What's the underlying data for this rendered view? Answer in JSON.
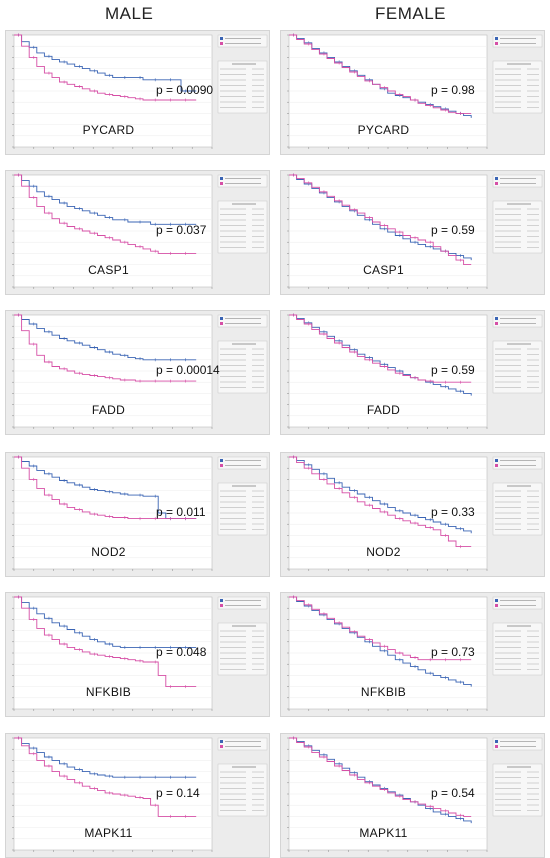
{
  "headers": {
    "left": "MALE",
    "right": "FEMALE"
  },
  "colors": {
    "low": "#3a64b4",
    "high": "#d64fa6"
  },
  "chart_data": [
    {
      "type": "line",
      "sex": "MALE",
      "gene": "PYCARD",
      "p_text": "p = 0.0090",
      "series": [
        {
          "values": [
            1,
            0.94,
            0.89,
            0.84,
            0.81,
            0.78,
            0.76,
            0.74,
            0.72,
            0.7,
            0.68,
            0.66,
            0.64,
            0.62,
            0.62,
            0.62,
            0.62,
            0.6,
            0.6,
            0.6,
            0.6,
            0.6,
            0.5,
            0.5,
            0.5
          ]
        },
        {
          "values": [
            1,
            0.9,
            0.8,
            0.72,
            0.66,
            0.62,
            0.58,
            0.56,
            0.54,
            0.52,
            0.5,
            0.48,
            0.47,
            0.46,
            0.45,
            0.44,
            0.43,
            0.42,
            0.42,
            0.42,
            0.42,
            0.42,
            0.42,
            0.42,
            0.42
          ]
        }
      ]
    },
    {
      "type": "line",
      "sex": "FEMALE",
      "gene": "PYCARD",
      "p_text": "p = 0.98",
      "series": [
        {
          "values": [
            1,
            0.97,
            0.93,
            0.88,
            0.84,
            0.8,
            0.76,
            0.72,
            0.68,
            0.64,
            0.6,
            0.56,
            0.52,
            0.48,
            0.46,
            0.44,
            0.42,
            0.4,
            0.38,
            0.36,
            0.34,
            0.32,
            0.3,
            0.28,
            0.26
          ]
        },
        {
          "values": [
            1,
            0.96,
            0.92,
            0.87,
            0.83,
            0.79,
            0.75,
            0.71,
            0.67,
            0.63,
            0.59,
            0.56,
            0.53,
            0.5,
            0.47,
            0.45,
            0.42,
            0.39,
            0.37,
            0.35,
            0.33,
            0.31,
            0.3,
            0.3,
            0.3
          ]
        }
      ]
    },
    {
      "type": "line",
      "sex": "MALE",
      "gene": "CASP1",
      "p_text": "p = 0.037",
      "series": [
        {
          "values": [
            1,
            0.95,
            0.9,
            0.85,
            0.81,
            0.78,
            0.75,
            0.72,
            0.7,
            0.68,
            0.66,
            0.64,
            0.62,
            0.6,
            0.6,
            0.58,
            0.58,
            0.58,
            0.56,
            0.56,
            0.56,
            0.56,
            0.56,
            0.56,
            0.56
          ]
        },
        {
          "values": [
            1,
            0.9,
            0.8,
            0.72,
            0.66,
            0.61,
            0.57,
            0.54,
            0.52,
            0.5,
            0.48,
            0.46,
            0.44,
            0.42,
            0.4,
            0.38,
            0.36,
            0.34,
            0.32,
            0.3,
            0.3,
            0.3,
            0.3,
            0.3,
            0.3
          ]
        }
      ]
    },
    {
      "type": "line",
      "sex": "FEMALE",
      "gene": "CASP1",
      "p_text": "p = 0.59",
      "series": [
        {
          "values": [
            1,
            0.96,
            0.92,
            0.88,
            0.84,
            0.8,
            0.76,
            0.72,
            0.68,
            0.64,
            0.6,
            0.56,
            0.52,
            0.49,
            0.46,
            0.43,
            0.4,
            0.38,
            0.36,
            0.34,
            0.32,
            0.3,
            0.28,
            0.26,
            0.24
          ]
        },
        {
          "values": [
            1,
            0.97,
            0.93,
            0.89,
            0.85,
            0.81,
            0.77,
            0.73,
            0.69,
            0.66,
            0.62,
            0.58,
            0.55,
            0.52,
            0.49,
            0.46,
            0.44,
            0.42,
            0.4,
            0.36,
            0.32,
            0.28,
            0.24,
            0.2,
            0.2
          ]
        }
      ]
    },
    {
      "type": "line",
      "sex": "MALE",
      "gene": "FADD",
      "p_text": "p = 0.00014",
      "series": [
        {
          "values": [
            1,
            0.96,
            0.92,
            0.88,
            0.85,
            0.82,
            0.79,
            0.77,
            0.75,
            0.73,
            0.71,
            0.69,
            0.67,
            0.65,
            0.64,
            0.62,
            0.61,
            0.6,
            0.6,
            0.6,
            0.6,
            0.6,
            0.6,
            0.6,
            0.6
          ]
        },
        {
          "values": [
            1,
            0.86,
            0.74,
            0.64,
            0.58,
            0.54,
            0.52,
            0.5,
            0.48,
            0.47,
            0.46,
            0.45,
            0.44,
            0.43,
            0.42,
            0.42,
            0.41,
            0.41,
            0.41,
            0.41,
            0.41,
            0.41,
            0.41,
            0.41,
            0.41
          ]
        }
      ]
    },
    {
      "type": "line",
      "sex": "FEMALE",
      "gene": "FADD",
      "p_text": "p = 0.59",
      "series": [
        {
          "values": [
            1,
            0.97,
            0.93,
            0.89,
            0.85,
            0.81,
            0.77,
            0.73,
            0.69,
            0.65,
            0.62,
            0.59,
            0.56,
            0.53,
            0.5,
            0.47,
            0.44,
            0.42,
            0.4,
            0.38,
            0.36,
            0.34,
            0.32,
            0.3,
            0.28
          ]
        },
        {
          "values": [
            1,
            0.96,
            0.92,
            0.87,
            0.83,
            0.79,
            0.75,
            0.71,
            0.67,
            0.63,
            0.6,
            0.57,
            0.54,
            0.51,
            0.48,
            0.46,
            0.44,
            0.42,
            0.41,
            0.4,
            0.4,
            0.4,
            0.4,
            0.4,
            0.4
          ]
        }
      ]
    },
    {
      "type": "line",
      "sex": "MALE",
      "gene": "NOD2",
      "p_text": "p = 0.011",
      "series": [
        {
          "values": [
            1,
            0.96,
            0.92,
            0.88,
            0.85,
            0.82,
            0.79,
            0.77,
            0.75,
            0.73,
            0.71,
            0.7,
            0.69,
            0.68,
            0.67,
            0.66,
            0.66,
            0.65,
            0.65,
            0.5,
            0.45,
            0.45,
            0.45,
            0.45,
            0.45
          ]
        },
        {
          "values": [
            1,
            0.9,
            0.8,
            0.72,
            0.66,
            0.62,
            0.58,
            0.55,
            0.53,
            0.51,
            0.49,
            0.48,
            0.47,
            0.46,
            0.46,
            0.45,
            0.45,
            0.45,
            0.45,
            0.45,
            0.45,
            0.45,
            0.45,
            0.45,
            0.45
          ]
        }
      ]
    },
    {
      "type": "line",
      "sex": "FEMALE",
      "gene": "NOD2",
      "p_text": "p = 0.33",
      "series": [
        {
          "values": [
            1,
            0.97,
            0.93,
            0.89,
            0.85,
            0.81,
            0.77,
            0.73,
            0.7,
            0.67,
            0.64,
            0.61,
            0.58,
            0.55,
            0.52,
            0.5,
            0.48,
            0.46,
            0.44,
            0.42,
            0.4,
            0.38,
            0.36,
            0.34,
            0.32
          ]
        },
        {
          "values": [
            1,
            0.95,
            0.9,
            0.85,
            0.8,
            0.76,
            0.72,
            0.68,
            0.64,
            0.6,
            0.57,
            0.54,
            0.51,
            0.48,
            0.45,
            0.43,
            0.41,
            0.39,
            0.37,
            0.35,
            0.3,
            0.25,
            0.2,
            0.2,
            0.2
          ]
        }
      ]
    },
    {
      "type": "line",
      "sex": "MALE",
      "gene": "NFKBIB",
      "p_text": "p = 0.048",
      "series": [
        {
          "values": [
            1,
            0.95,
            0.9,
            0.85,
            0.81,
            0.77,
            0.74,
            0.71,
            0.68,
            0.65,
            0.62,
            0.6,
            0.58,
            0.56,
            0.55,
            0.55,
            0.55,
            0.55,
            0.55,
            0.55,
            0.55,
            0.55,
            0.55,
            0.55,
            0.55
          ]
        },
        {
          "values": [
            1,
            0.9,
            0.8,
            0.72,
            0.66,
            0.62,
            0.58,
            0.55,
            0.53,
            0.51,
            0.49,
            0.48,
            0.47,
            0.46,
            0.45,
            0.44,
            0.43,
            0.42,
            0.42,
            0.3,
            0.2,
            0.2,
            0.2,
            0.2,
            0.2
          ]
        }
      ]
    },
    {
      "type": "line",
      "sex": "FEMALE",
      "gene": "NFKBIB",
      "p_text": "p = 0.73",
      "series": [
        {
          "values": [
            1,
            0.96,
            0.92,
            0.88,
            0.84,
            0.8,
            0.76,
            0.72,
            0.68,
            0.64,
            0.6,
            0.56,
            0.52,
            0.48,
            0.44,
            0.41,
            0.38,
            0.35,
            0.32,
            0.3,
            0.28,
            0.26,
            0.24,
            0.22,
            0.2
          ]
        },
        {
          "values": [
            1,
            0.97,
            0.93,
            0.89,
            0.85,
            0.81,
            0.77,
            0.73,
            0.69,
            0.65,
            0.62,
            0.59,
            0.56,
            0.53,
            0.5,
            0.48,
            0.46,
            0.44,
            0.44,
            0.44,
            0.44,
            0.44,
            0.44,
            0.44,
            0.44
          ]
        }
      ]
    },
    {
      "type": "line",
      "sex": "MALE",
      "gene": "MAPK11",
      "p_text": "p = 0.14",
      "series": [
        {
          "values": [
            1,
            0.95,
            0.91,
            0.87,
            0.83,
            0.8,
            0.77,
            0.74,
            0.72,
            0.7,
            0.68,
            0.67,
            0.66,
            0.65,
            0.65,
            0.65,
            0.65,
            0.65,
            0.65,
            0.65,
            0.65,
            0.65,
            0.65,
            0.65,
            0.65
          ]
        },
        {
          "values": [
            1,
            0.93,
            0.86,
            0.8,
            0.75,
            0.7,
            0.66,
            0.63,
            0.6,
            0.57,
            0.55,
            0.53,
            0.51,
            0.5,
            0.49,
            0.48,
            0.47,
            0.46,
            0.4,
            0.3,
            0.3,
            0.3,
            0.3,
            0.3,
            0.3
          ]
        }
      ]
    },
    {
      "type": "line",
      "sex": "FEMALE",
      "gene": "MAPK11",
      "p_text": "p = 0.54",
      "series": [
        {
          "values": [
            1,
            0.97,
            0.93,
            0.89,
            0.85,
            0.81,
            0.77,
            0.73,
            0.69,
            0.65,
            0.61,
            0.58,
            0.55,
            0.52,
            0.49,
            0.46,
            0.43,
            0.4,
            0.37,
            0.34,
            0.32,
            0.3,
            0.28,
            0.26,
            0.24
          ]
        },
        {
          "values": [
            1,
            0.96,
            0.92,
            0.87,
            0.83,
            0.79,
            0.75,
            0.71,
            0.67,
            0.63,
            0.6,
            0.57,
            0.54,
            0.51,
            0.48,
            0.45,
            0.43,
            0.41,
            0.39,
            0.37,
            0.35,
            0.33,
            0.31,
            0.3,
            0.3
          ]
        }
      ]
    }
  ]
}
